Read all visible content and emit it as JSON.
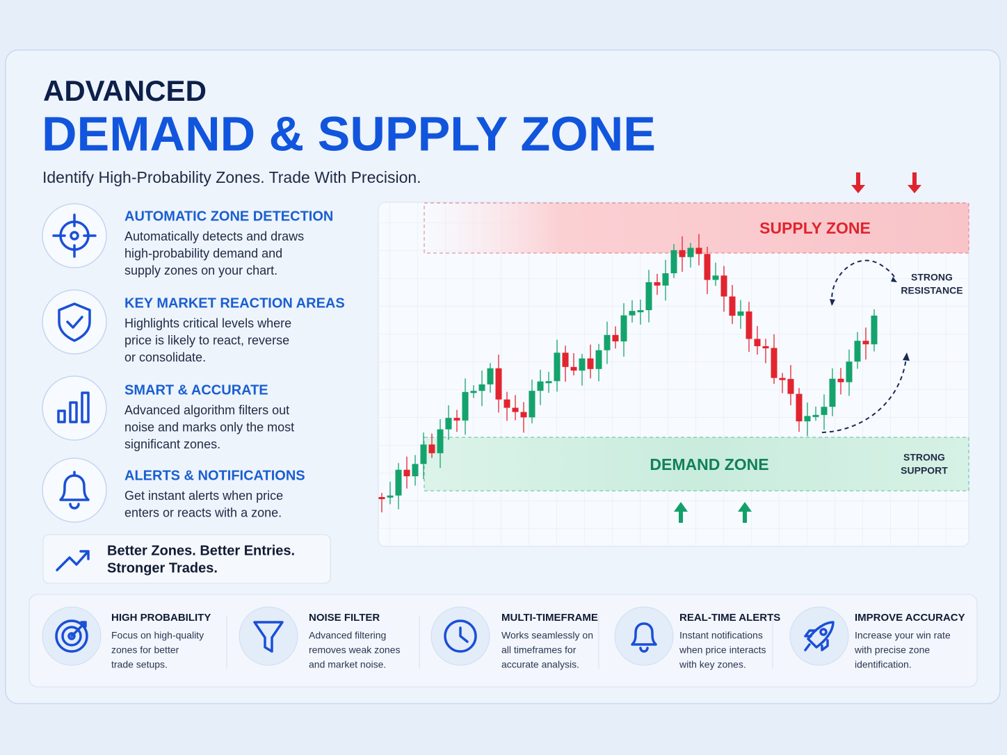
{
  "header": {
    "eyebrow": "ADVANCED",
    "title": "DEMAND & SUPPLY ZONE",
    "subtitle": "Identify High-Probability Zones. Trade With Precision."
  },
  "features": [
    {
      "title": "AUTOMATIC ZONE DETECTION",
      "description": [
        "Automatically detects and draws",
        "high-probability demand and",
        "supply zones on your chart."
      ]
    },
    {
      "title": "KEY MARKET REACTION AREAS",
      "description": [
        "Highlights critical levels where",
        "price is likely to react, reverse",
        "or consolidate."
      ]
    },
    {
      "title": "SMART & ACCURATE",
      "description": [
        "Advanced algorithm filters out",
        "noise and marks only the most",
        "significant zones."
      ]
    },
    {
      "title": "ALERTS & NOTIFICATIONS",
      "description": [
        "Get instant alerts when price",
        "enters or reacts with a zone."
      ]
    }
  ],
  "tagline": [
    "Better Zones. Better Entries.",
    "Stronger Trades."
  ],
  "chart": {
    "supply_label": "SUPPLY ZONE",
    "demand_label": "DEMAND ZONE",
    "resistance_label": [
      "STRONG",
      "RESISTANCE"
    ],
    "support_label": [
      "STRONG",
      "SUPPORT"
    ]
  },
  "benefits": [
    {
      "title": "HIGH PROBABILITY",
      "description": [
        "Focus on high-quality",
        "zones for better",
        "trade setups."
      ]
    },
    {
      "title": "NOISE FILTER",
      "description": [
        "Advanced filtering",
        "removes weak zones",
        "and market noise."
      ]
    },
    {
      "title": "MULTI-TIMEFRAME",
      "description": [
        "Works seamlessly on",
        "all timeframes for",
        "accurate analysis."
      ]
    },
    {
      "title": "REAL-TIME ALERTS",
      "description": [
        "Instant notifications",
        "when price interacts",
        "with key zones."
      ]
    },
    {
      "title": "IMPROVE ACCURACY",
      "description": [
        "Increase your win rate",
        "with precise zone",
        "identification."
      ]
    }
  ]
}
